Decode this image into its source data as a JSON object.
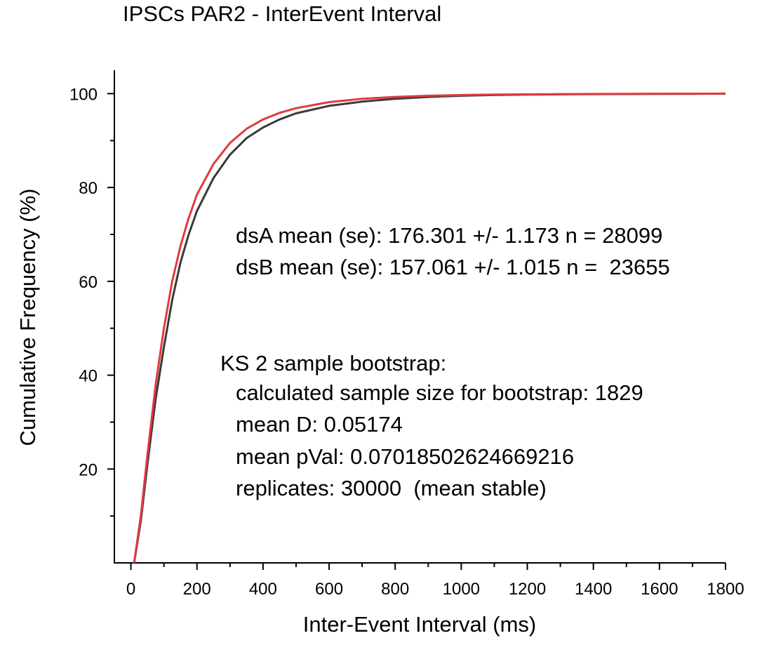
{
  "chart_data": {
    "type": "line",
    "title": "IPSCs PAR2 - InterEvent Interval",
    "xlabel": "Inter-Event Interval (ms)",
    "ylabel": "Cumulative Frequency (%)",
    "xlim": [
      -50,
      1800
    ],
    "ylim": [
      0,
      105
    ],
    "xticks": [
      "0",
      "200",
      "400",
      "600",
      "800",
      "1000",
      "1200",
      "1400",
      "1600",
      "1800"
    ],
    "yticks": [
      "20",
      "40",
      "60",
      "80",
      "100"
    ],
    "series": [
      {
        "color": "#3a3a3a",
        "x": [
          10,
          30,
          50,
          75,
          100,
          125,
          150,
          175,
          200,
          250,
          300,
          350,
          400,
          450,
          500,
          600,
          700,
          800,
          900,
          1000,
          1100,
          1200,
          1300,
          1400,
          1500,
          1600,
          1700,
          1800
        ],
        "y": [
          0,
          9,
          21,
          35,
          46,
          56,
          64,
          70,
          75,
          82,
          87,
          90.5,
          92.8,
          94.5,
          95.8,
          97.4,
          98.3,
          98.9,
          99.3,
          99.55,
          99.7,
          99.8,
          99.85,
          99.9,
          99.92,
          99.95,
          99.97,
          100
        ]
      },
      {
        "color": "#e03a3e",
        "x": [
          10,
          30,
          50,
          75,
          100,
          125,
          150,
          175,
          200,
          250,
          300,
          350,
          400,
          450,
          500,
          600,
          700,
          800,
          900,
          1000,
          1100,
          1200,
          1300,
          1400,
          1500,
          1600,
          1700,
          1800
        ],
        "y": [
          0,
          10,
          23,
          38,
          50,
          60,
          67.5,
          73.5,
          78.5,
          85,
          89.5,
          92.5,
          94.5,
          95.9,
          96.9,
          98.2,
          98.9,
          99.3,
          99.55,
          99.7,
          99.8,
          99.86,
          99.9,
          99.93,
          99.95,
          99.97,
          99.98,
          100
        ]
      }
    ]
  },
  "annotations": {
    "line1": "dsA mean (se): 176.301 +/- 1.173 n = 28099",
    "line2": "dsB mean (se): 157.061 +/- 1.015 n =  23655",
    "line3": "KS 2 sample bootstrap:",
    "line4": "calculated sample size for bootstrap: 1829",
    "line5": "mean D: 0.05174",
    "line6": "mean pVal: 0.07018502624669216",
    "line7": "replicates: 30000  (mean stable)"
  }
}
